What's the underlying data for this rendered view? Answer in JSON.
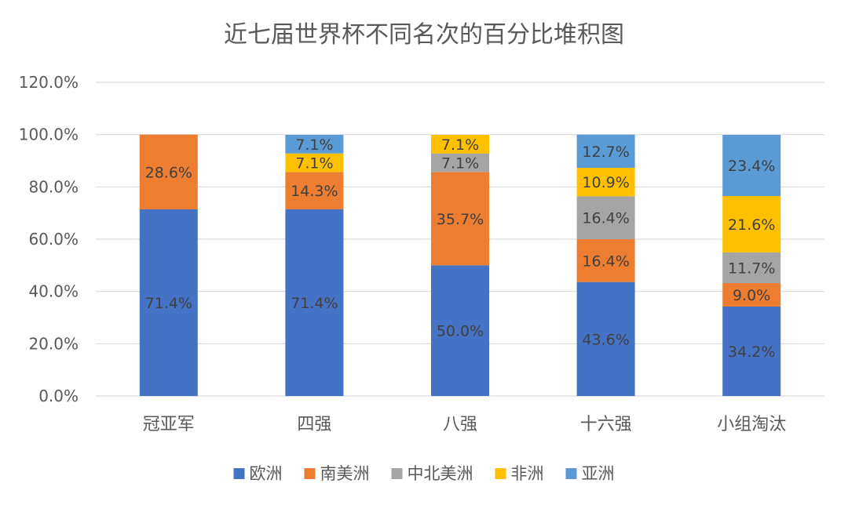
{
  "chart_data": {
    "type": "bar",
    "stacked": true,
    "title": "近七届世界杯不同名次的百分比堆积图",
    "categories": [
      "冠亚军",
      "四强",
      "八强",
      "十六强",
      "小组淘汰"
    ],
    "ylim": [
      0,
      120
    ],
    "yticks": [
      "0.0%",
      "20.0%",
      "40.0%",
      "60.0%",
      "80.0%",
      "100.0%",
      "120.0%"
    ],
    "grid": true,
    "legend_position": "bottom",
    "series": [
      {
        "name": "欧洲",
        "color": "#4472C4",
        "values": [
          71.4,
          71.4,
          50.0,
          43.6,
          34.2
        ],
        "labels": [
          "71.4%",
          "71.4%",
          "50.0%",
          "43.6%",
          "34.2%"
        ]
      },
      {
        "name": "南美洲",
        "color": "#ED7D31",
        "values": [
          28.6,
          14.3,
          35.7,
          16.4,
          9.0
        ],
        "labels": [
          "28.6%",
          "14.3%",
          "35.7%",
          "16.4%",
          "9.0%"
        ]
      },
      {
        "name": "中北美洲",
        "color": "#A5A5A5",
        "values": [
          0,
          0,
          7.1,
          16.4,
          11.7
        ],
        "labels": [
          "",
          "",
          "7.1%",
          "16.4%",
          "11.7%"
        ]
      },
      {
        "name": "非洲",
        "color": "#FFC000",
        "values": [
          0,
          7.1,
          7.1,
          10.9,
          21.6
        ],
        "labels": [
          "",
          "7.1%",
          "7.1%",
          "10.9%",
          "21.6%"
        ]
      },
      {
        "name": "亚洲",
        "color": "#5B9BD5",
        "values": [
          0,
          7.1,
          0,
          12.7,
          23.4
        ],
        "labels": [
          "",
          "7.1%",
          "",
          "12.7%",
          "23.4%"
        ]
      }
    ]
  }
}
